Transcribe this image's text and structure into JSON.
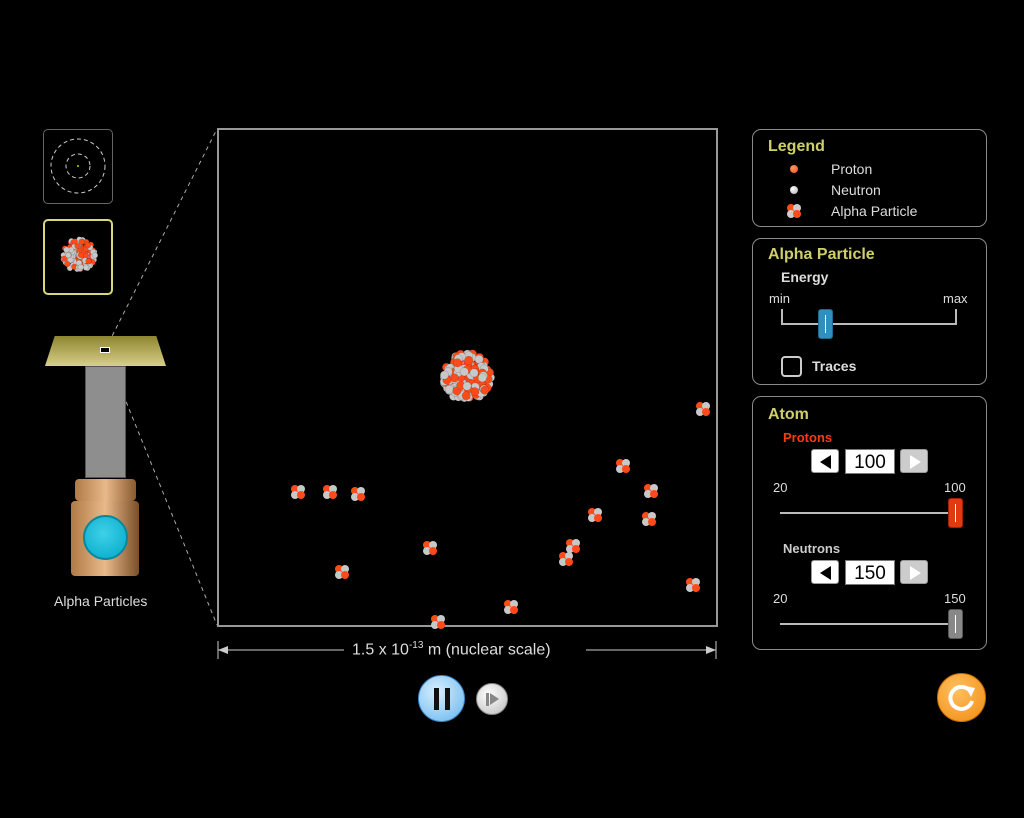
{
  "colors": {
    "proton": "#ff4b1a",
    "neutron": "#c8c8c8",
    "panel_title": "#cfcf6a",
    "protons_label": "#ff3a10",
    "reset": "#f7941d",
    "energy_thumb": "#2f8fbd"
  },
  "view_selector": [
    {
      "name": "atom-view-icon",
      "selected": false
    },
    {
      "name": "nucleus-view-icon",
      "selected": true
    }
  ],
  "source_label": "Alpha Particles",
  "scale": {
    "prefix": "1.5 x 10",
    "exponent": "-13",
    "suffix": " m (nuclear scale)"
  },
  "legend": {
    "title": "Legend",
    "items": [
      {
        "label": "Proton",
        "icon": "proton-icon"
      },
      {
        "label": "Neutron",
        "icon": "neutron-icon"
      },
      {
        "label": "Alpha Particle",
        "icon": "alpha-particle-icon"
      }
    ]
  },
  "alpha_panel": {
    "title": "Alpha Particle",
    "energy_label": "Energy",
    "min_label": "min",
    "max_label": "max",
    "energy_fraction": 0.25,
    "traces_label": "Traces",
    "traces_checked": false
  },
  "atom_panel": {
    "title": "Atom",
    "protons": {
      "label": "Protons",
      "value": "100",
      "min": "20",
      "max": "100"
    },
    "neutrons": {
      "label": "Neutrons",
      "value": "150",
      "min": "20",
      "max": "150"
    }
  },
  "controls": {
    "play_state": "playing",
    "pause_icon": "pause-icon",
    "step_icon": "step-forward-icon",
    "reset_icon": "reset-icon"
  }
}
